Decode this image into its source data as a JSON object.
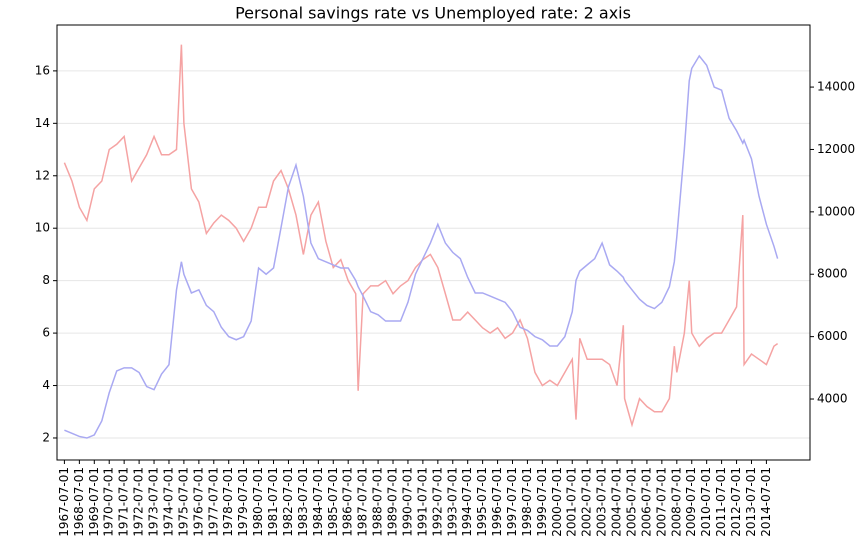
{
  "chart_data": {
    "type": "line",
    "title": "Personal savings rate vs Unemployed rate: 2 axis",
    "x": [
      "1967-07-01",
      "1968-01-01",
      "1968-07-01",
      "1969-01-01",
      "1969-07-01",
      "1970-01-01",
      "1970-07-01",
      "1971-01-01",
      "1971-07-01",
      "1972-01-01",
      "1972-07-01",
      "1973-01-01",
      "1973-07-01",
      "1974-01-01",
      "1974-07-01",
      "1975-01-01",
      "1975-05-01",
      "1975-07-01",
      "1976-01-01",
      "1976-07-01",
      "1977-01-01",
      "1977-07-01",
      "1978-01-01",
      "1978-07-01",
      "1979-01-01",
      "1979-07-01",
      "1980-01-01",
      "1980-07-01",
      "1981-01-01",
      "1981-07-01",
      "1982-01-01",
      "1982-07-01",
      "1983-01-01",
      "1983-07-01",
      "1984-01-01",
      "1984-07-01",
      "1985-01-01",
      "1985-07-01",
      "1986-01-01",
      "1986-07-01",
      "1987-01-01",
      "1987-03-01",
      "1987-07-01",
      "1988-01-01",
      "1988-07-01",
      "1989-01-01",
      "1989-07-01",
      "1990-01-01",
      "1990-07-01",
      "1991-01-01",
      "1991-07-01",
      "1992-01-01",
      "1992-07-01",
      "1993-01-01",
      "1993-07-01",
      "1994-01-01",
      "1994-07-01",
      "1995-01-01",
      "1995-07-01",
      "1996-01-01",
      "1996-07-01",
      "1997-01-01",
      "1997-07-01",
      "1998-01-01",
      "1998-07-01",
      "1999-01-01",
      "1999-07-01",
      "2000-01-01",
      "2000-07-01",
      "2001-01-01",
      "2001-07-01",
      "2001-10-01",
      "2002-01-01",
      "2002-07-01",
      "2003-01-01",
      "2003-07-01",
      "2004-01-01",
      "2004-07-01",
      "2004-12-01",
      "2005-01-01",
      "2005-07-01",
      "2006-01-01",
      "2006-07-01",
      "2007-01-01",
      "2007-07-01",
      "2008-01-01",
      "2008-05-01",
      "2008-07-01",
      "2009-01-01",
      "2009-05-01",
      "2009-07-01",
      "2010-01-01",
      "2010-07-01",
      "2011-01-01",
      "2011-07-01",
      "2012-01-01",
      "2012-07-01",
      "2012-12-01",
      "2013-01-01",
      "2013-07-01",
      "2014-01-01",
      "2014-07-01",
      "2015-01-01",
      "2015-04-01"
    ],
    "series": [
      {
        "color": "#f5a3a3",
        "values": [
          12.5,
          11.8,
          10.8,
          10.3,
          11.5,
          11.8,
          13.0,
          13.2,
          13.5,
          11.8,
          12.3,
          12.8,
          13.5,
          12.8,
          12.8,
          13.0,
          17.0,
          14.0,
          11.5,
          11.0,
          9.8,
          10.2,
          10.5,
          10.3,
          10.0,
          9.5,
          10.0,
          10.8,
          10.8,
          11.8,
          12.2,
          11.5,
          10.5,
          9.0,
          10.5,
          11.0,
          9.5,
          8.5,
          8.8,
          8.0,
          7.5,
          3.8,
          7.5,
          7.8,
          7.8,
          8.0,
          7.5,
          7.8,
          8.0,
          8.5,
          8.8,
          9.0,
          8.5,
          7.5,
          6.5,
          6.5,
          6.8,
          6.5,
          6.2,
          6.0,
          6.2,
          5.8,
          6.0,
          6.5,
          5.8,
          4.5,
          4.0,
          4.2,
          4.0,
          4.5,
          5.0,
          2.7,
          5.8,
          5.0,
          5.0,
          5.0,
          4.8,
          4.0,
          6.3,
          3.5,
          2.5,
          3.5,
          3.2,
          3.0,
          3.0,
          3.5,
          5.5,
          4.5,
          6.0,
          8.0,
          6.0,
          5.5,
          5.8,
          6.0,
          6.0,
          6.5,
          7.0,
          10.5,
          4.8,
          5.2,
          5.0,
          4.8,
          5.5,
          5.6
        ]
      },
      {
        "color": "#a9a9f2",
        "axis": "y2",
        "values": [
          3000,
          2900,
          2800,
          2750,
          2850,
          3300,
          4200,
          4900,
          5000,
          5000,
          4850,
          4400,
          4300,
          4800,
          5100,
          7500,
          8400,
          8000,
          7400,
          7500,
          7000,
          6800,
          6300,
          6000,
          5900,
          6000,
          6500,
          8200,
          8000,
          8200,
          9500,
          10800,
          11500,
          10500,
          9000,
          8500,
          8400,
          8300,
          8200,
          8200,
          7800,
          7600,
          7300,
          6800,
          6700,
          6500,
          6500,
          6500,
          7100,
          8000,
          8500,
          9000,
          9600,
          9000,
          8700,
          8500,
          7900,
          7400,
          7400,
          7300,
          7200,
          7100,
          6800,
          6300,
          6200,
          6000,
          5900,
          5700,
          5700,
          6000,
          6800,
          7800,
          8100,
          8300,
          8500,
          9000,
          8300,
          8100,
          7900,
          7800,
          7500,
          7200,
          7000,
          6900,
          7100,
          7600,
          8400,
          9200,
          12000,
          14200,
          14600,
          15000,
          14700,
          14000,
          13900,
          13000,
          12600,
          12200,
          12300,
          11700,
          10500,
          9600,
          8900,
          8500
        ]
      }
    ],
    "xlim": [
      "1967-01-01",
      "2017-06-01"
    ],
    "xticks": [
      "1967-07-01",
      "1968-07-01",
      "1969-07-01",
      "1970-07-01",
      "1971-07-01",
      "1972-07-01",
      "1973-07-01",
      "1974-07-01",
      "1975-07-01",
      "1976-07-01",
      "1977-07-01",
      "1978-07-01",
      "1979-07-01",
      "1980-07-01",
      "1981-07-01",
      "1982-07-01",
      "1983-07-01",
      "1984-07-01",
      "1985-07-01",
      "1986-07-01",
      "1987-07-01",
      "1988-07-01",
      "1989-07-01",
      "1990-07-01",
      "1991-07-01",
      "1992-07-01",
      "1993-07-01",
      "1994-07-01",
      "1995-07-01",
      "1996-07-01",
      "1997-07-01",
      "1998-07-01",
      "1999-07-01",
      "2000-07-01",
      "2001-07-01",
      "2002-07-01",
      "2003-07-01",
      "2004-07-01",
      "2005-07-01",
      "2006-07-01",
      "2007-07-01",
      "2008-07-01",
      "2009-07-01",
      "2010-07-01",
      "2011-07-01",
      "2012-07-01",
      "2013-07-01",
      "2014-07-01"
    ],
    "ylim": [
      1.16,
      17.75
    ],
    "yticks": [
      2,
      4,
      6,
      8,
      10,
      12,
      14,
      16
    ],
    "y2lim": [
      2045,
      15990
    ],
    "y2ticks": [
      4000,
      6000,
      8000,
      10000,
      12000,
      14000
    ],
    "grid": true
  }
}
